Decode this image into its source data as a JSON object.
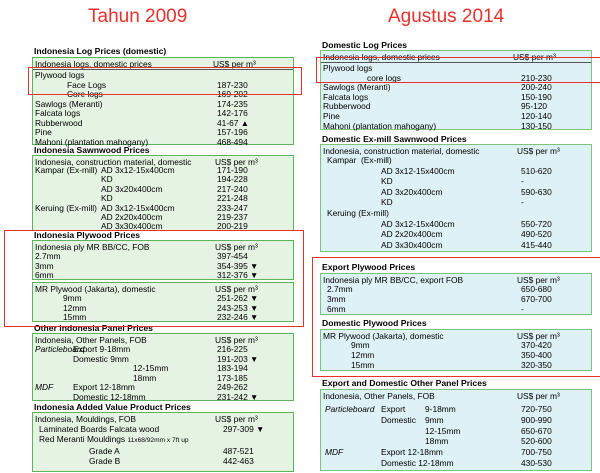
{
  "left": {
    "year": "Tahun 2009",
    "log": {
      "title": "Indonesia Log Prices (domestic)",
      "header_left": "Indonesia logs, domestic prices",
      "header_right": "US$ per m³",
      "rows": [
        {
          "label": "Plywood logs",
          "value": ""
        },
        {
          "label": "Face Logs",
          "value": "187-230"
        },
        {
          "label": "Core logs",
          "value": "169-202"
        },
        {
          "label": "Sawlogs (Meranti)",
          "value": "174-235"
        },
        {
          "label": "Falcata logs",
          "value": "142-176"
        },
        {
          "label": "Rubberwood",
          "value": "41-67 ▲"
        },
        {
          "label": "Pine",
          "value": "157-196"
        },
        {
          "label": "Mahoni (plantation mahogany)",
          "value": "468-494"
        }
      ]
    },
    "sawn": {
      "title": "Indonesia Sawnwood Prices",
      "header_left": "Indonesia, construction material, domestic",
      "header_right": "US$ per m³",
      "rows": [
        {
          "label": "Kampar (Ex-mill)",
          "sub": "AD 3x12-15x400cm",
          "value": "171-190"
        },
        {
          "label": "",
          "sub": "KD",
          "value": "194-228"
        },
        {
          "label": "",
          "sub": "AD 3x20x400cm",
          "value": "217-240"
        },
        {
          "label": "",
          "sub": "KD",
          "value": "221-248"
        },
        {
          "label": "Keruing (Ex-mill)",
          "sub": "AD 3x12-15x400cm",
          "value": "233-247"
        },
        {
          "label": "",
          "sub": "AD 2x20x400cm",
          "value": "219-237"
        },
        {
          "label": "",
          "sub": "AD 3x30x400cm",
          "value": "200-219"
        }
      ]
    },
    "ply": {
      "title": "Indonesia Plywood Prices",
      "header_left": "Indonesia ply MR BB/CC, FOB",
      "header_right": "US$ per m³",
      "rows": [
        {
          "label": "2.7mm",
          "value": "397-454"
        },
        {
          "label": "3mm",
          "value": "354-395 ▼"
        },
        {
          "label": "6mm",
          "value": "312-376 ▼"
        }
      ],
      "header2_left": "MR Plywood (Jakarta), domestic",
      "header2_right": "US$ per m³",
      "rows2": [
        {
          "label": "9mm",
          "value": "251-262 ▼"
        },
        {
          "label": "12mm",
          "value": "243-253 ▼"
        },
        {
          "label": "15mm",
          "value": "232-246 ▼"
        }
      ]
    },
    "panel": {
      "title": "Other Indonesia Panel Prices",
      "header_left": "Indonesia, Other Panels, FOB",
      "header_right": "US$ per m³",
      "rows": [
        {
          "a": "Particleboard",
          "b": "Export 9-18mm",
          "c": "",
          "value": "216-225"
        },
        {
          "a": "",
          "b": "Domestic 9mm",
          "c": "",
          "value": "191-203 ▼"
        },
        {
          "a": "",
          "b": "",
          "c": "12-15mm",
          "value": "183-194"
        },
        {
          "a": "",
          "b": "",
          "c": "18mm",
          "value": "173-185"
        },
        {
          "a": "MDF",
          "b": "Export 12-18mm",
          "c": "",
          "value": "249-262"
        },
        {
          "a": "",
          "b": "Domestic 12-18mm",
          "c": "",
          "value": "231-242 ▼"
        }
      ]
    },
    "added": {
      "title": "Indonesia Added Value Product Prices",
      "header_left": "Indonesia, Mouldings, FOB",
      "header_right": "US$ per m³",
      "row1_label": "Laminated Boards Falcata wood",
      "row1_value": "297-309 ▼",
      "row2_label": "Red Meranti Mouldings",
      "row2_small": "11x68/92mm x 7ft up",
      "rows": [
        {
          "label": "Grade A",
          "value": "487-521"
        },
        {
          "label": "Grade B",
          "value": "442-463"
        }
      ]
    }
  },
  "right": {
    "year": "Agustus 2014",
    "log": {
      "title": "Domestic Log Prices",
      "header_left": "Indonesia logs, domestic prices",
      "header_right": "US$ per m³",
      "rows": [
        {
          "label": "Plywood logs",
          "value": ""
        },
        {
          "label": "core logs",
          "value": "210-230"
        },
        {
          "label": "Sawlogs (Meranti)",
          "value": "200-240"
        },
        {
          "label": "Falcata logs",
          "value": "150-190"
        },
        {
          "label": "Rubberwood",
          "value": "95-120"
        },
        {
          "label": "Pine",
          "value": "120-140"
        },
        {
          "label": "Mahoni (plantation mahogany)",
          "value": "130-150"
        }
      ]
    },
    "sawn": {
      "title": "Domestic Ex-mill Sawnwood Prices",
      "header_left": "Indonesia, construction material, domestic",
      "header_right": "US$ per m³",
      "rows": [
        {
          "label": "Kampar",
          "sub": "(Ex-mill)",
          "value": ""
        },
        {
          "label": "",
          "sub": "AD 3x12-15x400cm",
          "value": "510-620"
        },
        {
          "label": "",
          "sub": "KD",
          "value": "-"
        },
        {
          "label": "",
          "sub": "AD 3x20x400cm",
          "value": "590-630"
        },
        {
          "label": "",
          "sub": "KD",
          "value": "-"
        },
        {
          "label": "Keruing (Ex-mill)",
          "sub": "",
          "value": ""
        },
        {
          "label": "",
          "sub": "AD 3x12-15x400cm",
          "value": "550-720"
        },
        {
          "label": "",
          "sub": "AD 2x20x400cm",
          "value": "490-520"
        },
        {
          "label": "",
          "sub": "AD 3x30x400cm",
          "value": "415-440"
        }
      ]
    },
    "export_ply": {
      "title": "Export Plywood Prices",
      "header_left": "Indonesia ply MR BB/CC, export FOB",
      "header_right": "US$ per m³",
      "rows": [
        {
          "label": "2.7mm",
          "value": "650-680"
        },
        {
          "label": "3mm",
          "value": "670-700"
        },
        {
          "label": "6mm",
          "value": "-"
        }
      ]
    },
    "dom_ply": {
      "title": "Domestic Plywood Prices",
      "header_left": "MR Plywood (Jakarta), domestic",
      "header_right": "US$ per m³",
      "rows": [
        {
          "label": "9mm",
          "value": "370-420"
        },
        {
          "label": "12mm",
          "value": "350-400"
        },
        {
          "label": "15mm",
          "value": "320-350"
        }
      ]
    },
    "panel": {
      "title": "Export and Domestic Other Panel Prices",
      "header_left": "Indonesia, Other Panels, FOB",
      "header_right": "US$ per m³",
      "rows": [
        {
          "a": "Particleboard",
          "b": "Export",
          "c": "9-18mm",
          "value": "720-750"
        },
        {
          "a": "",
          "b": "Domestic",
          "c": "9mm",
          "value": "900-990"
        },
        {
          "a": "",
          "b": "",
          "c": "12-15mm",
          "value": "650-670"
        },
        {
          "a": "",
          "b": "",
          "c": "18mm",
          "value": "520-600"
        },
        {
          "a": "MDF",
          "b": "Export 12-18mm",
          "c": "",
          "value": "700-750"
        },
        {
          "a": "",
          "b": "Domestic 12-18mm",
          "c": "",
          "value": "430-530"
        }
      ]
    }
  },
  "colors": {
    "heading_red": "#e8312c",
    "left_box_bg": "#e4f3e2",
    "right_box_bg": "#ddf1f6",
    "box_border": "#5bb35b"
  }
}
